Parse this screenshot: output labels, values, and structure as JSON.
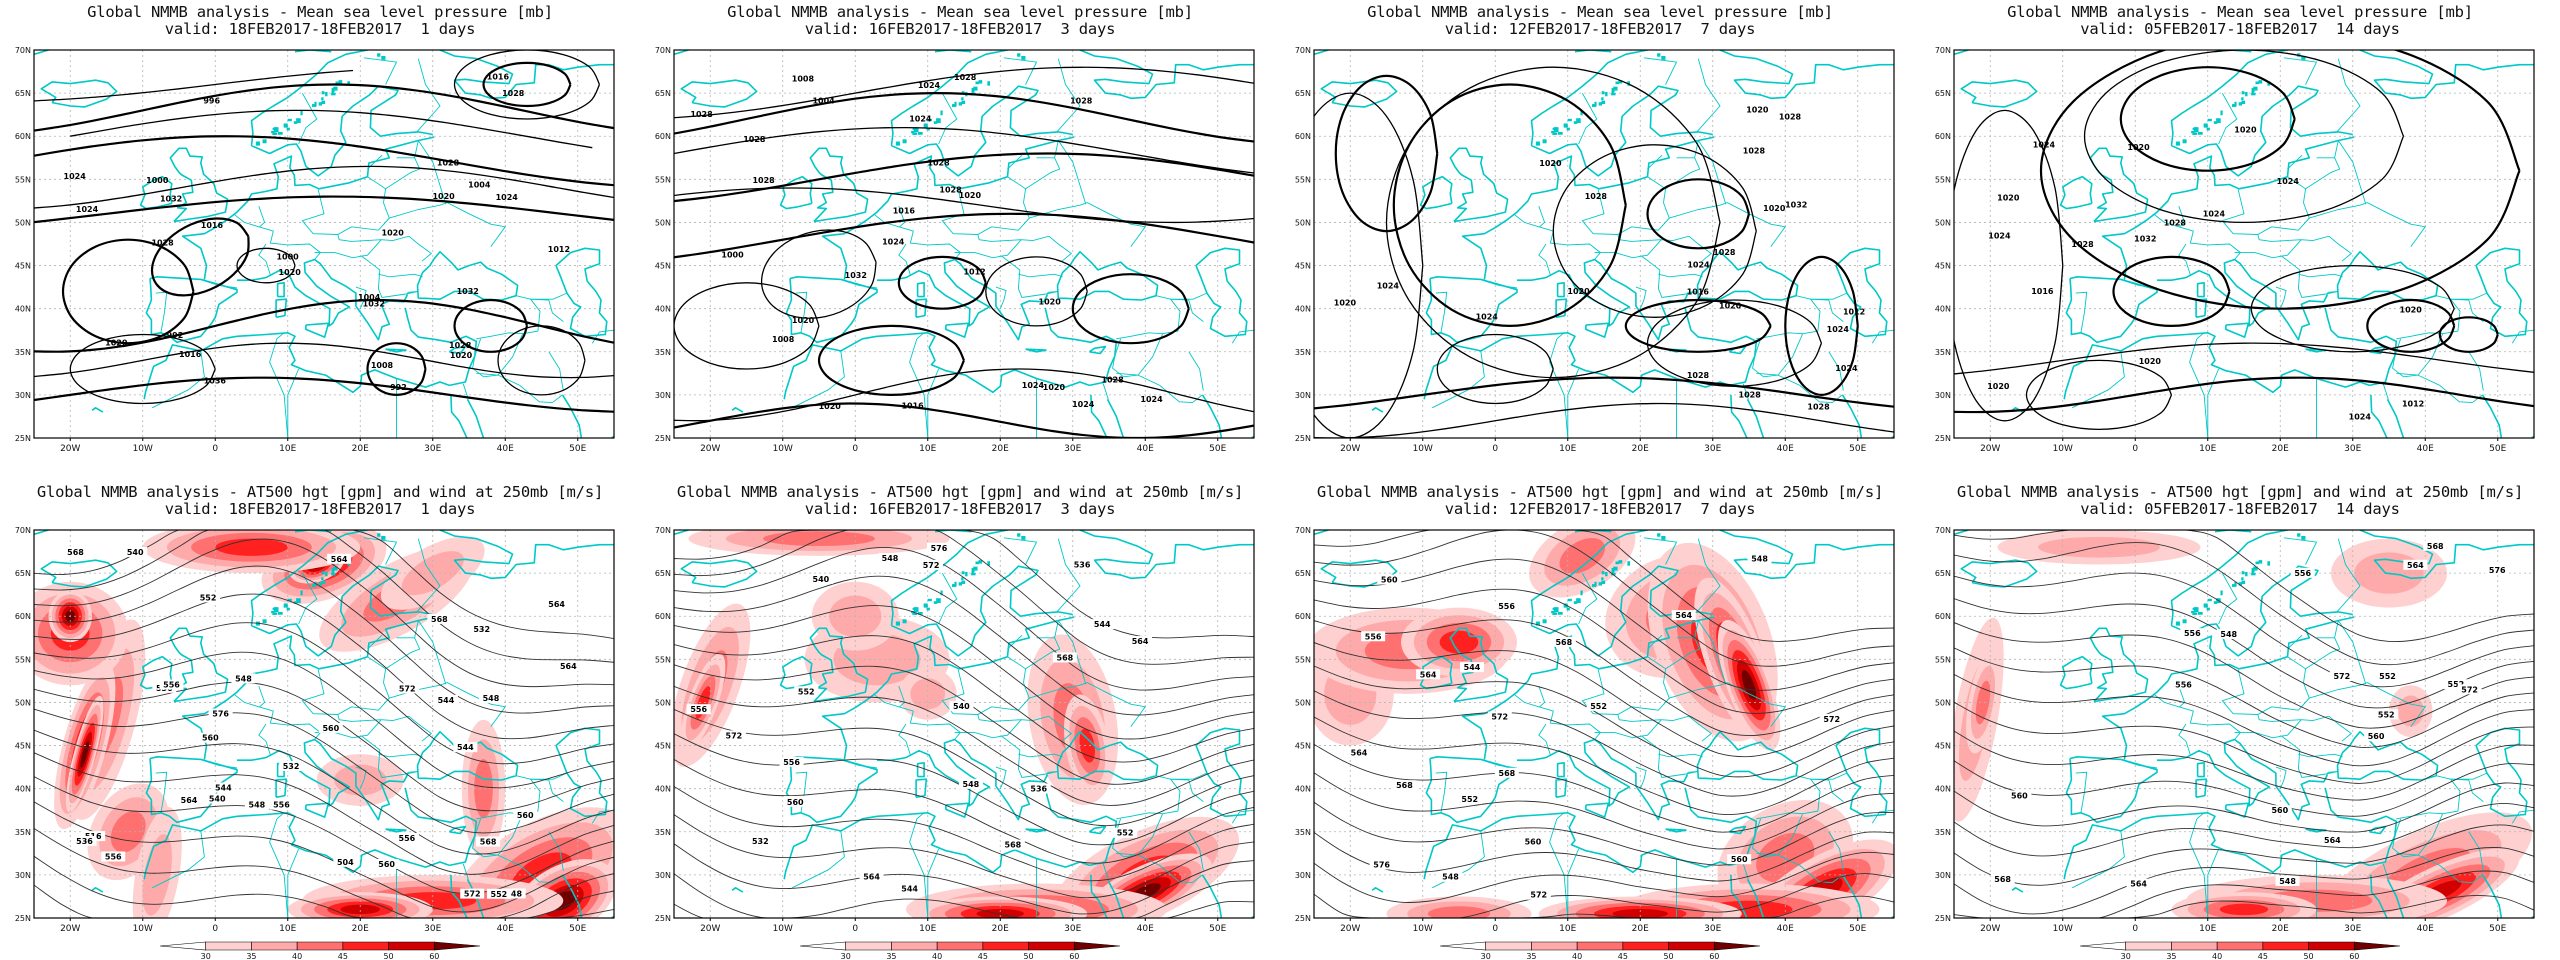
{
  "colors": {
    "coast": "#00c8c8",
    "contour": "#000000",
    "grid": "#b4b4b4",
    "wind_levels": [
      "#ffffff",
      "#ffd0d0",
      "#ffaaaa",
      "#ff7070",
      "#ff2020",
      "#d00000",
      "#700000"
    ]
  },
  "top_row": {
    "title": "Global NMMB analysis - Mean sea level pressure [mb]",
    "panels": [
      {
        "valid": "valid: 18FEB2017-18FEB2017  1 days",
        "labels": [
          "992",
          "996",
          "992",
          "1000",
          "1004",
          "1008",
          "1012",
          "1016",
          "1020",
          "1016",
          "1020",
          "1024",
          "1000",
          "1004",
          "1020",
          "1016",
          "1024",
          "1028",
          "1032",
          "1024",
          "1028",
          "1032",
          "1036",
          "1020",
          "1020",
          "1028",
          "1028",
          "1032"
        ]
      },
      {
        "valid": "valid: 16FEB2017-18FEB2017  3 days",
        "labels": [
          "1008",
          "1024",
          "1012",
          "1000",
          "1004",
          "1008",
          "1016",
          "1016",
          "1020",
          "1020",
          "1024",
          "1024",
          "1028",
          "1020",
          "1028",
          "1024",
          "1028",
          "1028",
          "1028",
          "1028",
          "1028",
          "1032",
          "1028",
          "1024",
          "1020",
          "1024",
          "1020"
        ]
      },
      {
        "valid": "valid: 12FEB2017-18FEB2017  7 days",
        "labels": [
          "1016",
          "1012",
          "1020",
          "1024",
          "1028",
          "1028",
          "1032",
          "1028",
          "1024",
          "1028",
          "1028",
          "1024",
          "1020",
          "1020",
          "1024",
          "1028",
          "1028",
          "1024",
          "1020",
          "1020",
          "1020"
        ]
      },
      {
        "valid": "valid: 05FEB2017-18FEB2017  14 days",
        "labels": [
          "1028",
          "1032",
          "1024",
          "1012",
          "1016",
          "1028",
          "1020",
          "1024",
          "1024",
          "1024",
          "1020",
          "1020",
          "1020",
          "1020",
          "1020",
          "1024"
        ]
      }
    ]
  },
  "bottom_row": {
    "title": "Global NMMB analysis - AT500 hgt [gpm] and wind at 250mb [m/s]",
    "panels": [
      {
        "valid": "valid: 18FEB2017-18FEB2017  1 days",
        "labels": [
          "532",
          "536",
          "540",
          "544",
          "548",
          "552",
          "556",
          "560",
          "540",
          "544",
          "548",
          "564",
          "568",
          "572",
          "576",
          "556",
          "560",
          "564",
          "564",
          "548",
          "552",
          "556",
          "560",
          "564",
          "568",
          "572",
          "504",
          "516",
          "532",
          "536",
          "544",
          "548",
          "556",
          "560",
          "568"
        ]
      },
      {
        "valid": "valid: 16FEB2017-18FEB2017  3 days",
        "labels": [
          "532",
          "536",
          "540",
          "544",
          "548",
          "552",
          "556",
          "560",
          "564",
          "568",
          "572",
          "576",
          "536",
          "540",
          "544",
          "548",
          "552",
          "556",
          "560",
          "564",
          "568",
          "572"
        ]
      },
      {
        "valid": "valid: 12FEB2017-18FEB2017  7 days",
        "labels": [
          "548",
          "552",
          "556",
          "560",
          "564",
          "568",
          "572",
          "576",
          "560",
          "564",
          "568",
          "572",
          "544",
          "548",
          "552",
          "556",
          "560",
          "564",
          "568",
          "572"
        ]
      },
      {
        "valid": "valid: 05FEB2017-18FEB2017  14 days",
        "labels": [
          "548",
          "552",
          "556",
          "560",
          "564",
          "568",
          "572",
          "576",
          "552",
          "556",
          "560",
          "564",
          "568",
          "572",
          "548",
          "552",
          "556",
          "560",
          "564"
        ]
      }
    ]
  },
  "axes": {
    "lon_labels": [
      "20W",
      "10W",
      "0",
      "10E",
      "20E",
      "30E",
      "40E",
      "50E"
    ],
    "lat_labels": [
      "70N",
      "65N",
      "60N",
      "55N",
      "50N",
      "45N",
      "40N",
      "35N",
      "30N",
      "25N"
    ]
  },
  "colorbar": {
    "ticks": [
      "30",
      "35",
      "40",
      "45",
      "50",
      "60"
    ]
  }
}
